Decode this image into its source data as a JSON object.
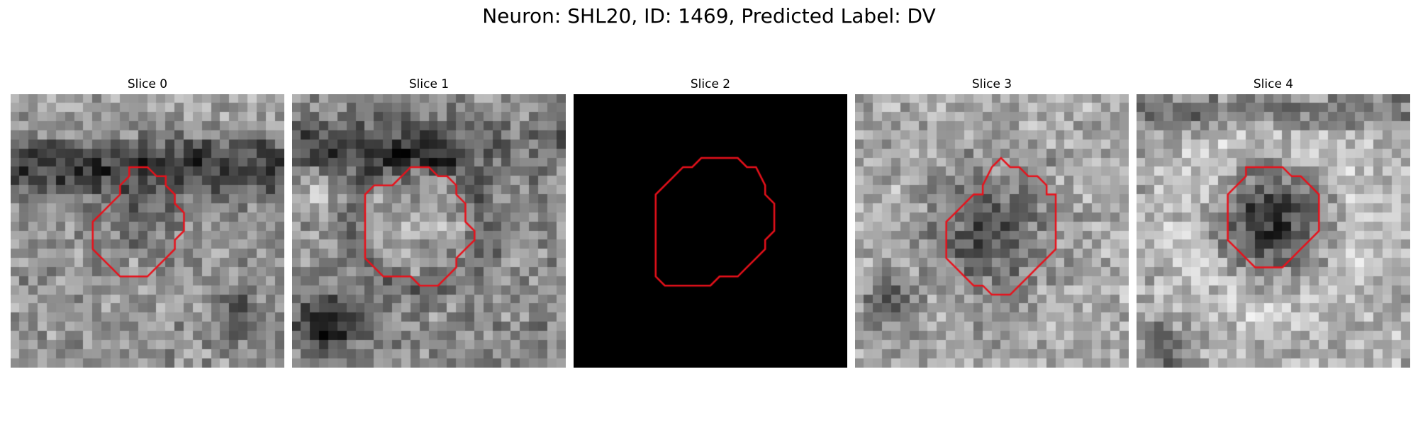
{
  "figure": {
    "title": "Neuron: SHL20, ID: 1469, Predicted Label: DV",
    "contour_color": "#e8101a",
    "slices": [
      {
        "label": "Slice 0",
        "image": "grayscale micrograph, dark horizontal band through upper third, mottled mid-gray texture",
        "blank": false,
        "contour": [
          [
            13,
            8
          ],
          [
            15,
            8
          ],
          [
            16,
            9
          ],
          [
            17,
            9
          ],
          [
            17,
            10
          ],
          [
            18,
            11
          ],
          [
            18,
            12
          ],
          [
            19,
            13
          ],
          [
            19,
            15
          ],
          [
            18,
            16
          ],
          [
            18,
            17
          ],
          [
            17,
            18
          ],
          [
            16,
            19
          ],
          [
            15,
            20
          ],
          [
            12,
            20
          ],
          [
            11,
            19
          ],
          [
            10,
            18
          ],
          [
            9,
            17
          ],
          [
            9,
            14
          ],
          [
            10,
            13
          ],
          [
            11,
            12
          ],
          [
            12,
            11
          ],
          [
            12,
            10
          ],
          [
            13,
            9
          ]
        ]
      },
      {
        "label": "Slice 1",
        "image": "grayscale micrograph, rounded lighter cell body in center, dark blob lower-left",
        "blank": false,
        "contour": [
          [
            13,
            8
          ],
          [
            15,
            8
          ],
          [
            16,
            9
          ],
          [
            17,
            9
          ],
          [
            18,
            10
          ],
          [
            18,
            11
          ],
          [
            19,
            12
          ],
          [
            19,
            14
          ],
          [
            20,
            15
          ],
          [
            20,
            16
          ],
          [
            19,
            17
          ],
          [
            18,
            18
          ],
          [
            18,
            19
          ],
          [
            17,
            20
          ],
          [
            16,
            21
          ],
          [
            14,
            21
          ],
          [
            13,
            20
          ],
          [
            10,
            20
          ],
          [
            9,
            19
          ],
          [
            8,
            18
          ],
          [
            8,
            11
          ],
          [
            9,
            10
          ],
          [
            11,
            10
          ],
          [
            12,
            9
          ]
        ]
      },
      {
        "label": "Slice 2",
        "image": "uniform black frame",
        "blank": true,
        "contour": [
          [
            14,
            7
          ],
          [
            18,
            7
          ],
          [
            19,
            8
          ],
          [
            20,
            8
          ],
          [
            21,
            10
          ],
          [
            21,
            11
          ],
          [
            22,
            12
          ],
          [
            22,
            15
          ],
          [
            21,
            16
          ],
          [
            21,
            17
          ],
          [
            20,
            18
          ],
          [
            19,
            19
          ],
          [
            18,
            20
          ],
          [
            16,
            20
          ],
          [
            15,
            21
          ],
          [
            10,
            21
          ],
          [
            9,
            20
          ],
          [
            9,
            11
          ],
          [
            11,
            9
          ],
          [
            12,
            8
          ],
          [
            13,
            8
          ]
        ]
      },
      {
        "label": "Slice 3",
        "image": "grayscale micrograph, dark round cell body center, bright surrounding texture",
        "blank": false,
        "contour": [
          [
            15,
            8
          ],
          [
            16,
            7
          ],
          [
            17,
            8
          ],
          [
            18,
            8
          ],
          [
            19,
            9
          ],
          [
            20,
            9
          ],
          [
            21,
            10
          ],
          [
            21,
            11
          ],
          [
            22,
            11
          ],
          [
            22,
            17
          ],
          [
            21,
            18
          ],
          [
            20,
            19
          ],
          [
            19,
            20
          ],
          [
            18,
            21
          ],
          [
            17,
            22
          ],
          [
            15,
            22
          ],
          [
            14,
            21
          ],
          [
            13,
            21
          ],
          [
            12,
            20
          ],
          [
            11,
            19
          ],
          [
            10,
            18
          ],
          [
            10,
            14
          ],
          [
            11,
            13
          ],
          [
            12,
            12
          ],
          [
            13,
            11
          ],
          [
            14,
            11
          ],
          [
            14,
            10
          ]
        ]
      },
      {
        "label": "Slice 4",
        "image": "grayscale micrograph, dark round nucleus center, light halo and textured background",
        "blank": false,
        "contour": [
          [
            12,
            8
          ],
          [
            16,
            8
          ],
          [
            17,
            9
          ],
          [
            18,
            9
          ],
          [
            19,
            10
          ],
          [
            20,
            11
          ],
          [
            20,
            15
          ],
          [
            19,
            16
          ],
          [
            18,
            17
          ],
          [
            17,
            18
          ],
          [
            16,
            19
          ],
          [
            13,
            19
          ],
          [
            12,
            18
          ],
          [
            11,
            17
          ],
          [
            10,
            16
          ],
          [
            10,
            11
          ],
          [
            11,
            10
          ],
          [
            12,
            9
          ]
        ]
      }
    ]
  }
}
